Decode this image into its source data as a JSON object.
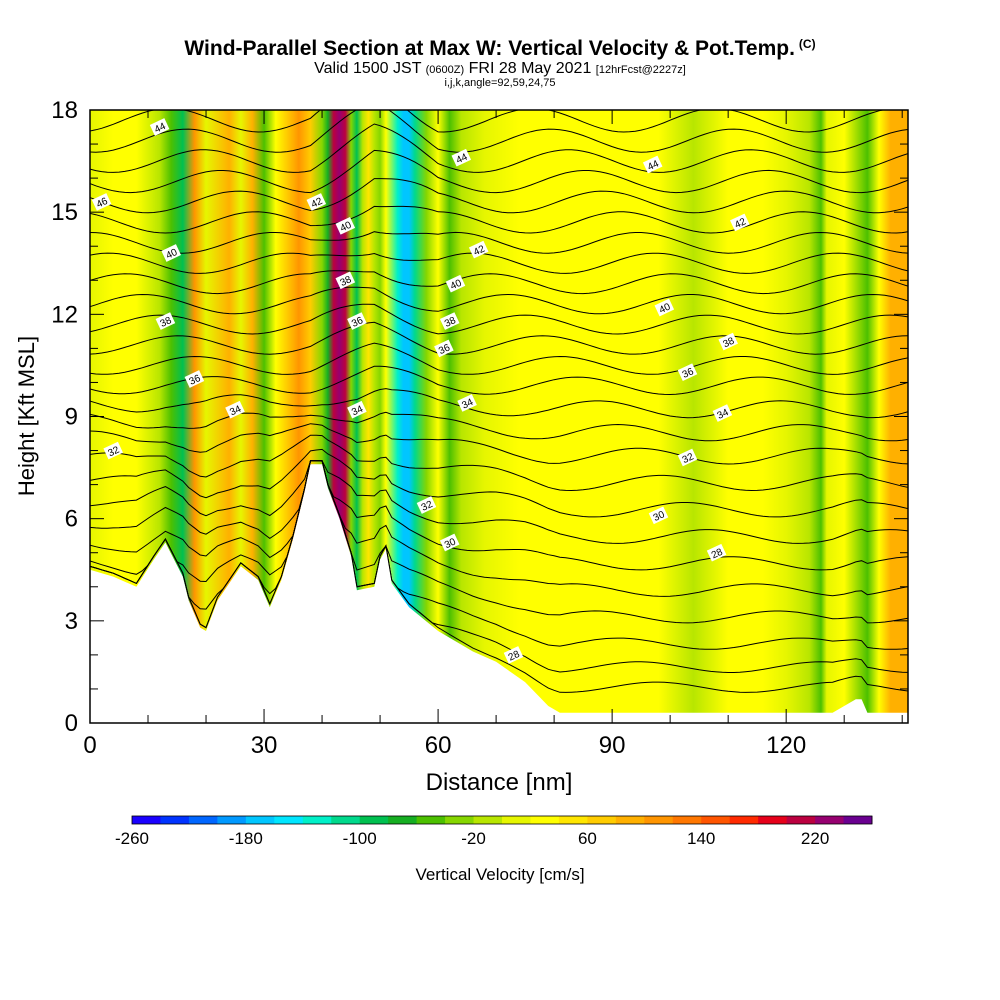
{
  "title": {
    "main": "Wind-Parallel Section at Max W: Vertical Velocity & Pot.Temp.",
    "copyright": "(C)",
    "valid": "Valid 1500 JST",
    "valid_utc": "(0600Z)",
    "date": "FRI 28 May 2021",
    "forecast": "[12hrFcst@2227z]",
    "indices": "i,j,k,angle=92,59,24,75"
  },
  "chart_data": {
    "type": "heatmap",
    "xlabel": "Distance [nm]",
    "ylabel": "Height [Kft MSL]",
    "xlim": [
      0,
      141
    ],
    "ylim": [
      0,
      18
    ],
    "x_ticks": [
      0,
      30,
      60,
      90,
      120
    ],
    "y_ticks": [
      0,
      3,
      6,
      9,
      12,
      15,
      18
    ],
    "colorbar": {
      "label": "Vertical Velocity [cm/s]",
      "min": -260,
      "max": 260,
      "step": 20,
      "tick_labels": [
        "-260",
        "-180",
        "-100",
        "-20",
        "60",
        "140",
        "220"
      ],
      "colors": [
        "#1a00ff",
        "#0033ff",
        "#0066ff",
        "#0099ff",
        "#00c6ff",
        "#00e6ff",
        "#00f0c8",
        "#00d98c",
        "#00c050",
        "#16ae22",
        "#4cc000",
        "#86d600",
        "#b8e600",
        "#e6f600",
        "#ffff00",
        "#ffe600",
        "#ffcc00",
        "#ffb000",
        "#ff9500",
        "#ff7700",
        "#ff5500",
        "#ff2a00",
        "#e6001a",
        "#bb0040",
        "#960070",
        "#6a0090"
      ]
    },
    "columns": [
      [
        0,
        15
      ],
      [
        4,
        20
      ],
      [
        8,
        25
      ],
      [
        12,
        -5
      ],
      [
        14,
        -45
      ],
      [
        16,
        -95
      ],
      [
        18,
        100
      ],
      [
        20,
        15
      ],
      [
        24,
        95
      ],
      [
        26,
        5
      ],
      [
        28,
        85
      ],
      [
        30,
        -45
      ],
      [
        32,
        25
      ],
      [
        36,
        110
      ],
      [
        38,
        60
      ],
      [
        40,
        -30
      ],
      [
        41,
        -70
      ],
      [
        42,
        210
      ],
      [
        43,
        230
      ],
      [
        44,
        200
      ],
      [
        45,
        -40
      ],
      [
        46,
        -90
      ],
      [
        47,
        -15
      ],
      [
        48,
        45
      ],
      [
        49,
        -10
      ],
      [
        50,
        -30
      ],
      [
        51,
        20
      ],
      [
        53,
        -130
      ],
      [
        54,
        -170
      ],
      [
        55,
        -180
      ],
      [
        56,
        -110
      ],
      [
        58,
        -40
      ],
      [
        60,
        20
      ],
      [
        62,
        -50
      ],
      [
        64,
        -10
      ],
      [
        68,
        10
      ],
      [
        74,
        30
      ],
      [
        80,
        20
      ],
      [
        86,
        30
      ],
      [
        92,
        25
      ],
      [
        98,
        35
      ],
      [
        104,
        -5
      ],
      [
        110,
        20
      ],
      [
        116,
        30
      ],
      [
        120,
        15
      ],
      [
        124,
        -5
      ],
      [
        126,
        -45
      ],
      [
        127,
        10
      ],
      [
        130,
        20
      ],
      [
        134,
        -50
      ],
      [
        136,
        25
      ],
      [
        138,
        80
      ],
      [
        140,
        90
      ]
    ],
    "terrain": [
      [
        0,
        4.5
      ],
      [
        4,
        4.3
      ],
      [
        8,
        4.0
      ],
      [
        11,
        4.8
      ],
      [
        13,
        5.3
      ],
      [
        16,
        4.3
      ],
      [
        17,
        3.6
      ],
      [
        19,
        2.8
      ],
      [
        20,
        2.7
      ],
      [
        22,
        3.6
      ],
      [
        26,
        4.6
      ],
      [
        29,
        4.2
      ],
      [
        31,
        3.4
      ],
      [
        33,
        4.2
      ],
      [
        35,
        5.4
      ],
      [
        37,
        6.8
      ],
      [
        38,
        7.6
      ],
      [
        40,
        7.6
      ],
      [
        41,
        6.9
      ],
      [
        43,
        6.0
      ],
      [
        45,
        4.9
      ],
      [
        46,
        3.9
      ],
      [
        49,
        4.0
      ],
      [
        50,
        4.8
      ],
      [
        51,
        5.1
      ],
      [
        52,
        4.1
      ],
      [
        55,
        3.4
      ],
      [
        60,
        2.7
      ],
      [
        66,
        2.1
      ],
      [
        70,
        1.8
      ],
      [
        75,
        1.2
      ],
      [
        79,
        0.5
      ],
      [
        81,
        0.3
      ],
      [
        128,
        0.3
      ],
      [
        132,
        0.7
      ],
      [
        133,
        0.7
      ],
      [
        134,
        0.3
      ],
      [
        141,
        0.3
      ]
    ],
    "theta_contours": [
      {
        "level": "28",
        "labels": [
          [
            73,
            2.0
          ],
          [
            108,
            5.0
          ]
        ]
      },
      {
        "level": "30",
        "labels": [
          [
            62,
            5.3
          ],
          [
            98,
            6.1
          ]
        ]
      },
      {
        "level": "32",
        "labels": [
          [
            4,
            8.0
          ],
          [
            58,
            6.4
          ],
          [
            103,
            7.8
          ]
        ]
      },
      {
        "level": "34",
        "labels": [
          [
            25,
            9.2
          ],
          [
            46,
            9.2
          ],
          [
            65,
            9.4
          ],
          [
            109,
            9.1
          ]
        ]
      },
      {
        "level": "36",
        "labels": [
          [
            18,
            10.1
          ],
          [
            46,
            11.8
          ],
          [
            61,
            11.0
          ],
          [
            103,
            10.3
          ]
        ]
      },
      {
        "level": "38",
        "labels": [
          [
            13,
            11.8
          ],
          [
            44,
            13.0
          ],
          [
            62,
            11.8
          ],
          [
            110,
            11.2
          ]
        ]
      },
      {
        "level": "40",
        "labels": [
          [
            14,
            13.8
          ],
          [
            44,
            14.6
          ],
          [
            63,
            12.9
          ],
          [
            99,
            12.2
          ]
        ]
      },
      {
        "level": "42",
        "labels": [
          [
            39,
            15.3
          ],
          [
            67,
            13.9
          ],
          [
            112,
            14.7
          ]
        ]
      },
      {
        "level": "44",
        "labels": [
          [
            12,
            17.5
          ],
          [
            64,
            16.6
          ],
          [
            97,
            16.4
          ]
        ]
      },
      {
        "level": "46",
        "labels": [
          [
            2,
            15.3
          ]
        ]
      }
    ]
  }
}
